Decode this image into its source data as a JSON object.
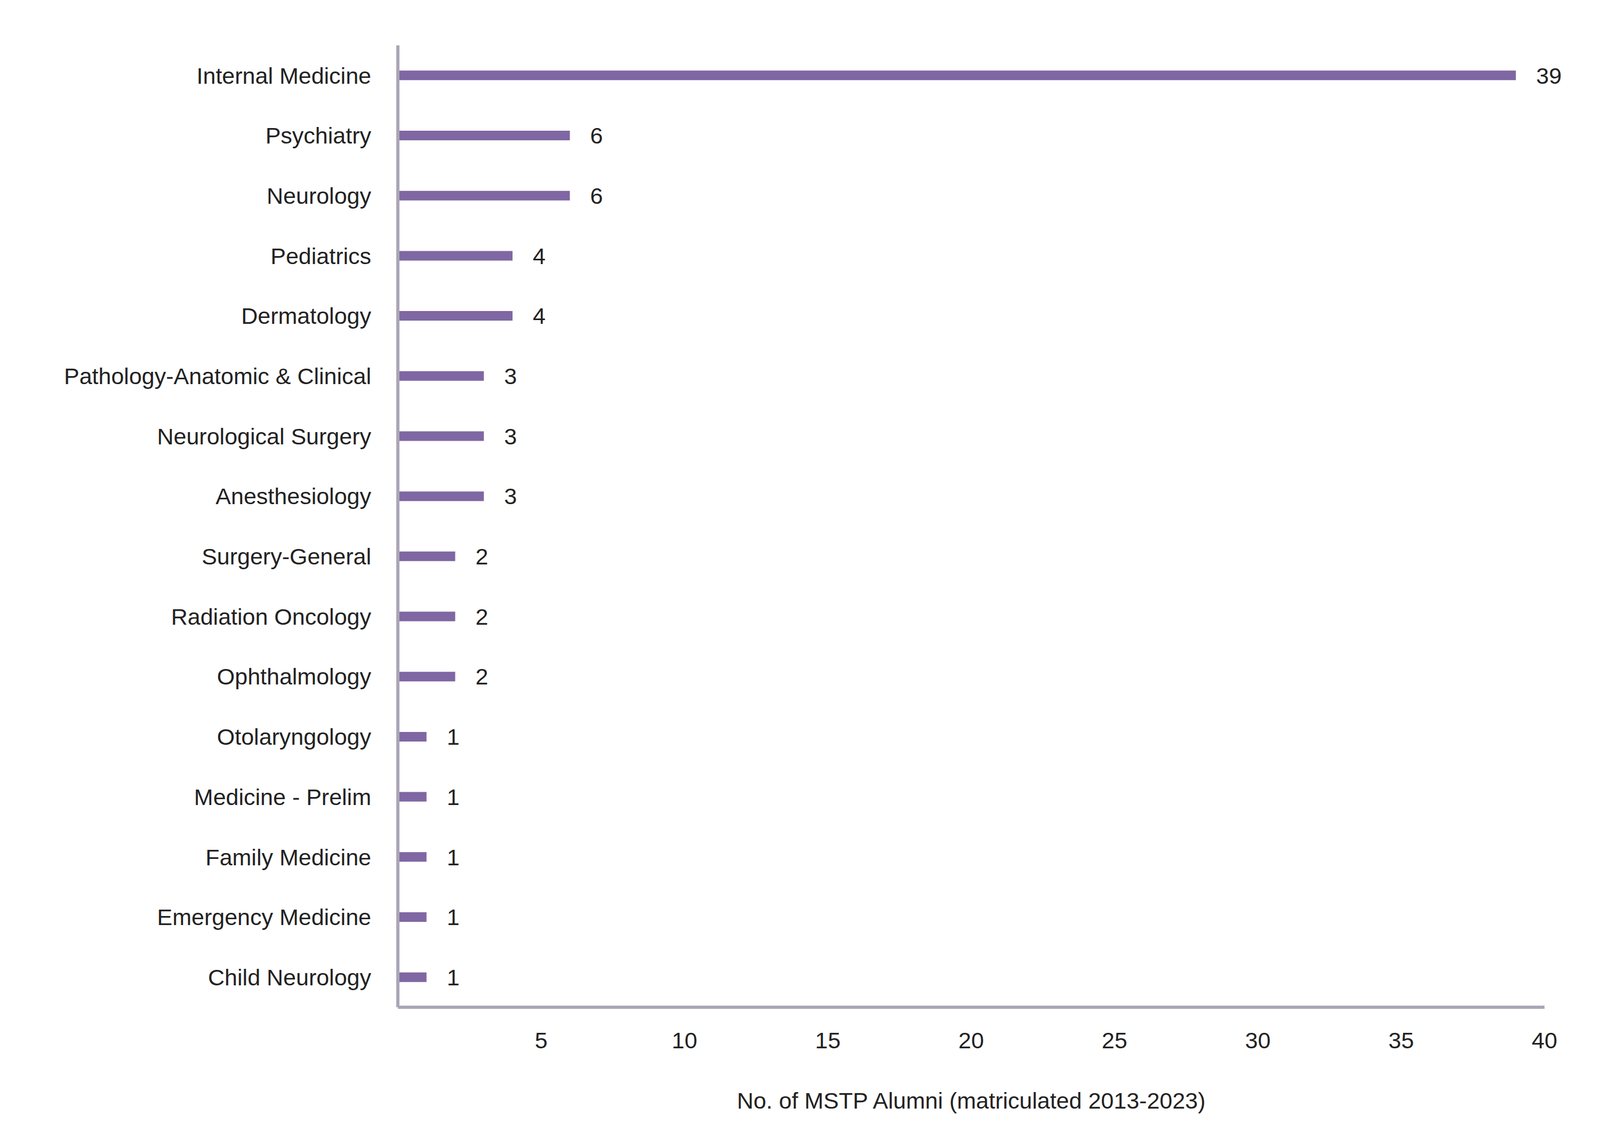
{
  "chart_data": {
    "type": "bar",
    "orientation": "horizontal",
    "categories": [
      "Internal Medicine",
      "Psychiatry",
      "Neurology",
      "Pediatrics",
      "Dermatology",
      "Pathology-Anatomic & Clinical",
      "Neurological Surgery",
      "Anesthesiology",
      "Surgery-General",
      "Radiation Oncology",
      "Ophthalmology",
      "Otolaryngology",
      "Medicine - Prelim",
      "Family Medicine",
      "Emergency Medicine",
      "Child Neurology"
    ],
    "values": [
      39,
      6,
      6,
      4,
      4,
      3,
      3,
      3,
      2,
      2,
      2,
      1,
      1,
      1,
      1,
      1
    ],
    "color": "#7f67a3",
    "x_label": "No. of MSTP Alumni (matriculated 2013-2023)",
    "xlim": [
      0,
      40
    ],
    "xticks": [
      5,
      10,
      15,
      20,
      25,
      30,
      35,
      40
    ],
    "data_labels": true,
    "grid": false
  }
}
